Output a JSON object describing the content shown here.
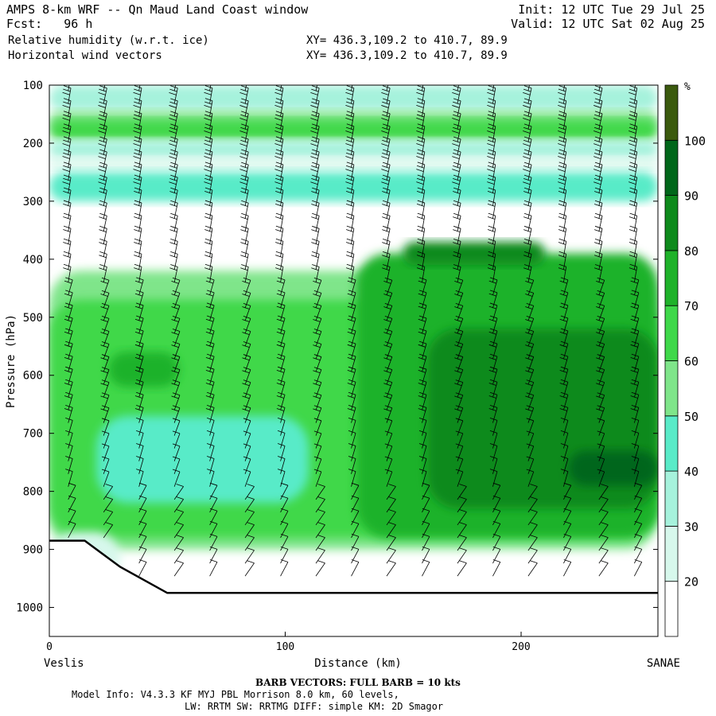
{
  "header": {
    "title": "AMPS 8-km WRF -- Qn Maud Land Coast window",
    "fcst": "Fcst:   96 h",
    "field1": "Relative humidity (w.r.t. ice)",
    "field2": "Horizontal wind vectors",
    "xy1": "XY= 436.3,109.2 to 410.7, 89.9",
    "xy2": "XY= 436.3,109.2 to 410.7, 89.9",
    "init": "Init: 12 UTC Tue 29 Jul 25",
    "valid": "Valid: 12 UTC Sat 02 Aug 25"
  },
  "footer": {
    "barb": "BARB VECTORS:  FULL BARB = 10 kts",
    "model1": "Model Info: V4.3.3   KF     MYJ PBL  Morrison         8.0 km,  60 levels,",
    "model2": "LW: RRTM SW: RRTMG   DIFF: simple KM: 2D Smagor"
  },
  "colors": {
    "rh_20_30": "#d7f8ec",
    "rh_30_40": "#a6f2dc",
    "rh_40_50": "#59ebc8",
    "rh_50_60": "#7fe58a",
    "rh_60_70": "#3fd84a",
    "rh_70_80": "#1fb22a",
    "rh_80_90": "#0e8a1c",
    "rh_90_100": "#00661a",
    "rh_100plus": "#3b5a0e"
  },
  "chart_data": {
    "type": "heatmap",
    "title": "Relative humidity (w.r.t. ice) cross-section with horizontal wind vectors",
    "xlabel": "Distance (km)",
    "ylabel": "Pressure (hPa)",
    "xlim": [
      0,
      258
    ],
    "ylim": [
      1050,
      100
    ],
    "x_ticks": [
      0,
      100,
      200
    ],
    "y_ticks": [
      100,
      200,
      300,
      400,
      500,
      600,
      700,
      800,
      900,
      1000
    ],
    "left_endpoint": "Veslis",
    "right_endpoint": "SANAE",
    "colorbar": {
      "unit": "%",
      "levels": [
        20,
        30,
        40,
        50,
        60,
        70,
        80,
        90,
        100
      ],
      "colors": [
        "#ffffff",
        "#d7f8ec",
        "#a6f2dc",
        "#59ebc8",
        "#7fe58a",
        "#3fd84a",
        "#1fb22a",
        "#0e8a1c",
        "#00661a",
        "#3b5a0e"
      ]
    },
    "terrain_profile": [
      [
        0,
        885
      ],
      [
        15,
        885
      ],
      [
        30,
        930
      ],
      [
        50,
        975
      ],
      [
        100,
        975
      ],
      [
        150,
        975
      ],
      [
        200,
        975
      ],
      [
        258,
        975
      ]
    ],
    "rh_regions": [
      {
        "rh": 35,
        "x0": 0,
        "x1": 258,
        "p0": 100,
        "p1": 145
      },
      {
        "rh": 55,
        "x0": 0,
        "x1": 258,
        "p0": 145,
        "p1": 180
      },
      {
        "rh": 65,
        "x0": 0,
        "x1": 258,
        "p0": 160,
        "p1": 195
      },
      {
        "rh": 35,
        "x0": 0,
        "x1": 258,
        "p0": 195,
        "p1": 225
      },
      {
        "rh": 25,
        "x0": 0,
        "x1": 258,
        "p0": 225,
        "p1": 245
      },
      {
        "rh": 45,
        "x0": 0,
        "x1": 258,
        "p0": 250,
        "p1": 300
      },
      {
        "rh": 55,
        "x0": 0,
        "x1": 258,
        "p0": 420,
        "p1": 900
      },
      {
        "rh": 65,
        "x0": 0,
        "x1": 258,
        "p0": 470,
        "p1": 880
      },
      {
        "rh": 75,
        "x0": 130,
        "x1": 258,
        "p0": 390,
        "p1": 880
      },
      {
        "rh": 85,
        "x0": 150,
        "x1": 210,
        "p0": 370,
        "p1": 410
      },
      {
        "rh": 85,
        "x0": 160,
        "x1": 258,
        "p0": 520,
        "p1": 830
      },
      {
        "rh": 95,
        "x0": 220,
        "x1": 258,
        "p0": 730,
        "p1": 790
      },
      {
        "rh": 75,
        "x0": 25,
        "x1": 55,
        "p0": 560,
        "p1": 620
      },
      {
        "rh": 40,
        "x0": 20,
        "x1": 110,
        "p0": 670,
        "p1": 820
      },
      {
        "rh": 25,
        "x0": 0,
        "x1": 30,
        "p0": 870,
        "p1": 960
      }
    ],
    "wind_barb_columns_km": [
      8,
      23,
      38,
      53,
      68,
      83,
      98,
      113,
      128,
      143,
      158,
      173,
      188,
      203,
      218,
      233,
      248
    ]
  }
}
